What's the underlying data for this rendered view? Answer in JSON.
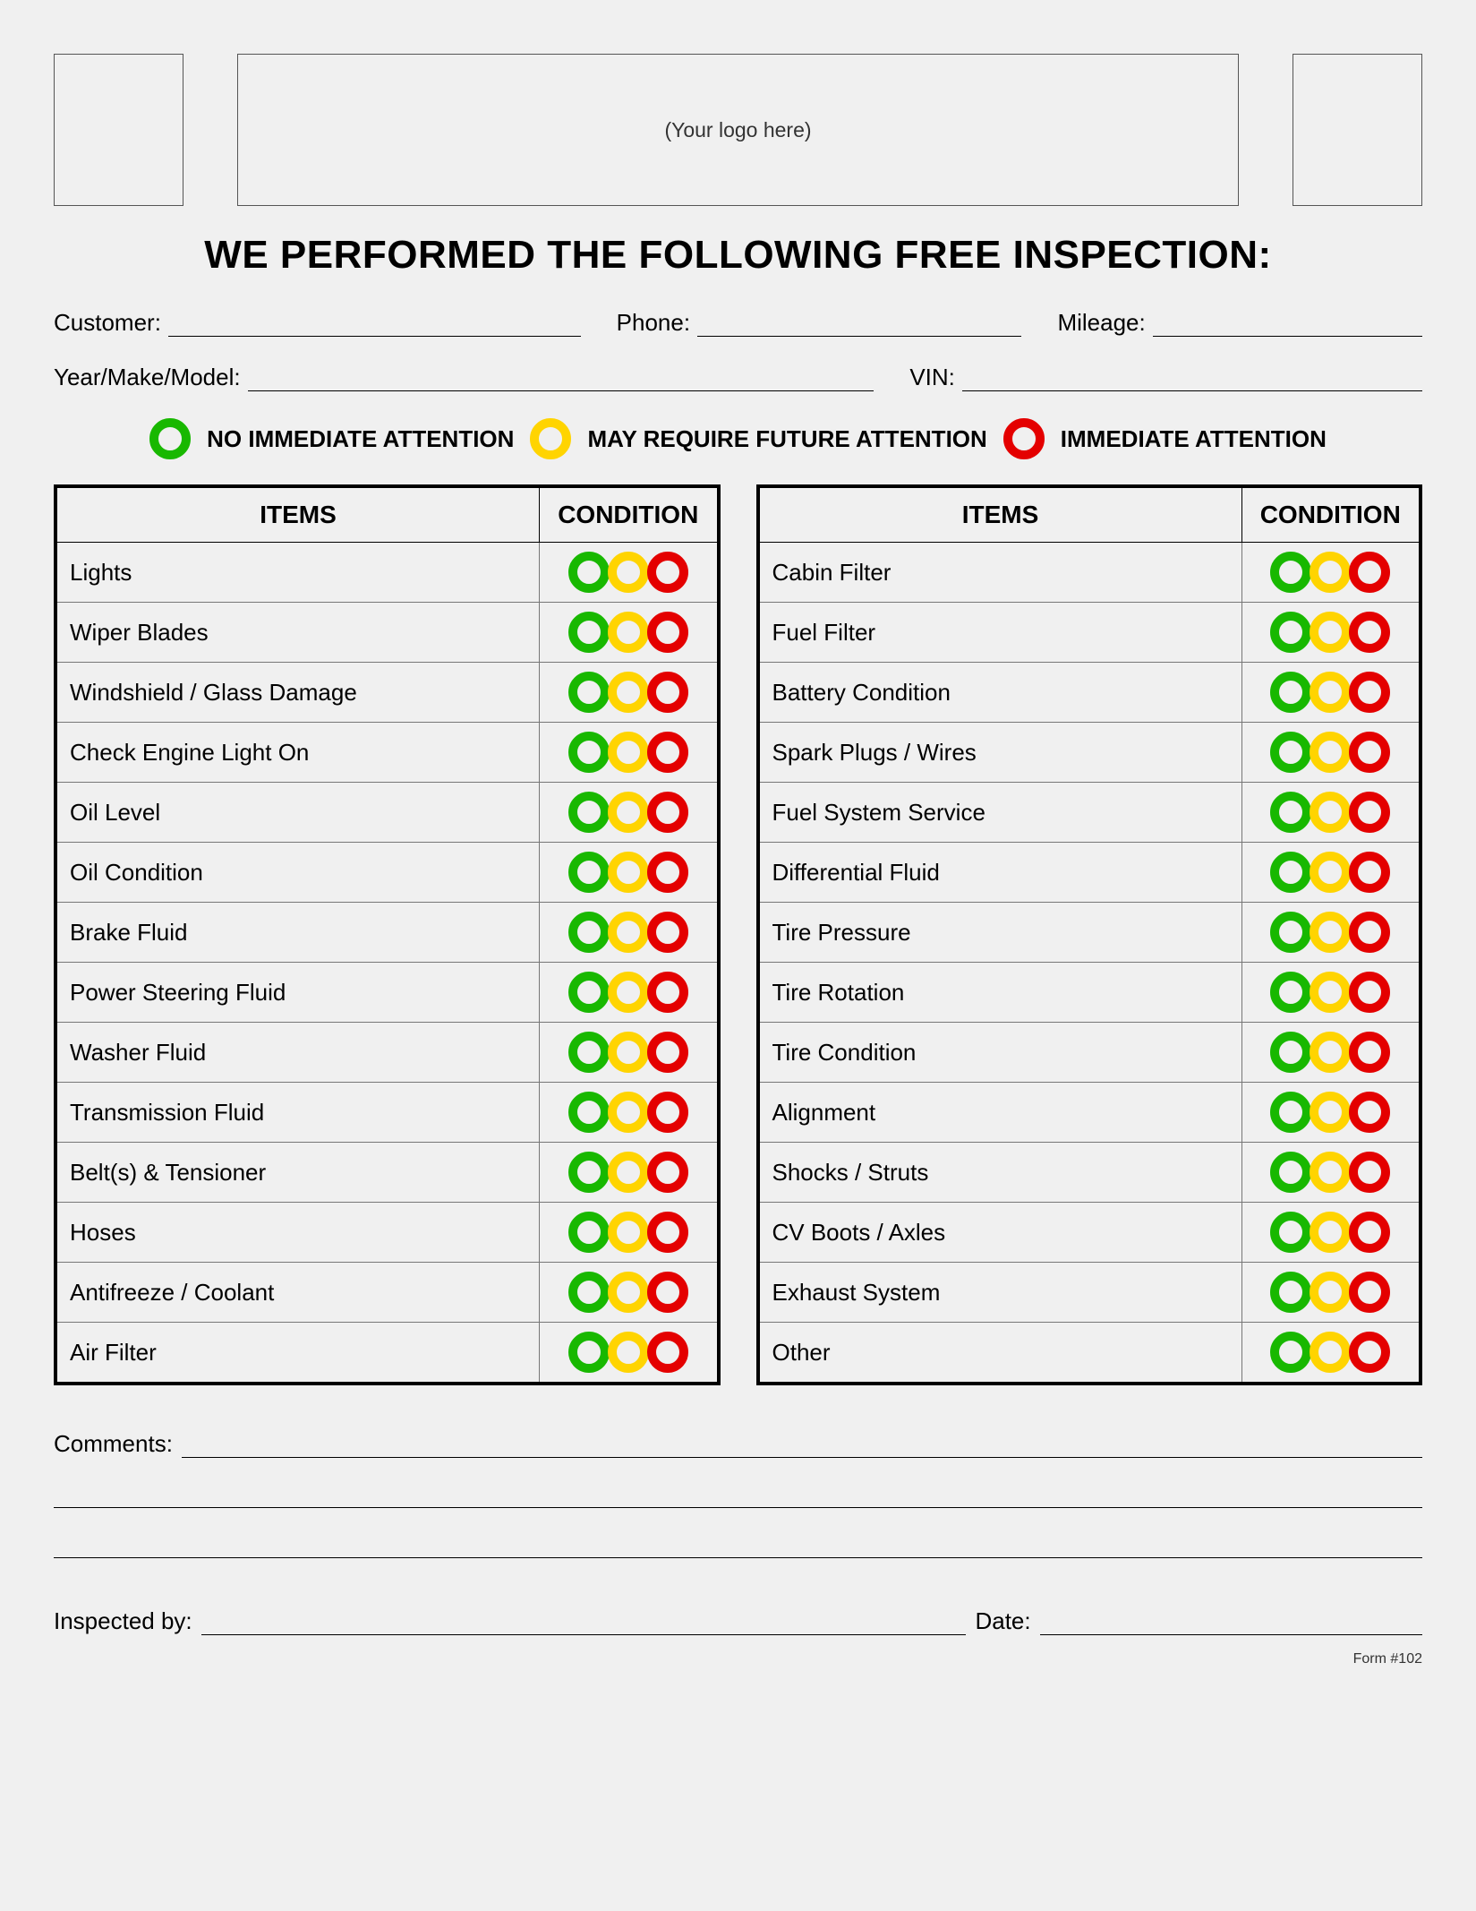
{
  "colors": {
    "green": "#18b800",
    "yellow": "#ffd400",
    "red": "#e40000",
    "border": "#000000",
    "bg": "#f0f0f0"
  },
  "logo_placeholder": "(Your logo here)",
  "title": "WE PERFORMED THE FOLLOWING FREE INSPECTION:",
  "info_row1": {
    "customer": "Customer:",
    "phone": "Phone:",
    "mileage": "Mileage:"
  },
  "info_row2": {
    "ymm": "Year/Make/Model:",
    "vin": "VIN:"
  },
  "legend": {
    "no_attention": "NO IMMEDIATE ATTENTION",
    "future_attention": "MAY REQUIRE FUTURE ATTENTION",
    "immediate_attention": "IMMEDIATE ATTENTION"
  },
  "table_headers": {
    "items": "ITEMS",
    "condition": "CONDITION"
  },
  "left_items": [
    "Lights",
    "Wiper Blades",
    "Windshield / Glass Damage",
    "Check Engine Light On",
    "Oil Level",
    "Oil Condition",
    "Brake Fluid",
    "Power Steering Fluid",
    "Washer Fluid",
    "Transmission Fluid",
    "Belt(s) & Tensioner",
    "Hoses",
    "Antifreeze / Coolant",
    "Air Filter"
  ],
  "right_items": [
    "Cabin Filter",
    "Fuel Filter",
    "Battery Condition",
    "Spark Plugs / Wires",
    "Fuel System Service",
    "Differential Fluid",
    "Tire Pressure",
    "Tire Rotation",
    "Tire Condition",
    "Alignment",
    "Shocks / Struts",
    "CV Boots / Axles",
    "Exhaust System",
    "Other"
  ],
  "comments_label": "Comments:",
  "inspected_by": "Inspected by:",
  "date": "Date:",
  "form_number": "Form #102"
}
